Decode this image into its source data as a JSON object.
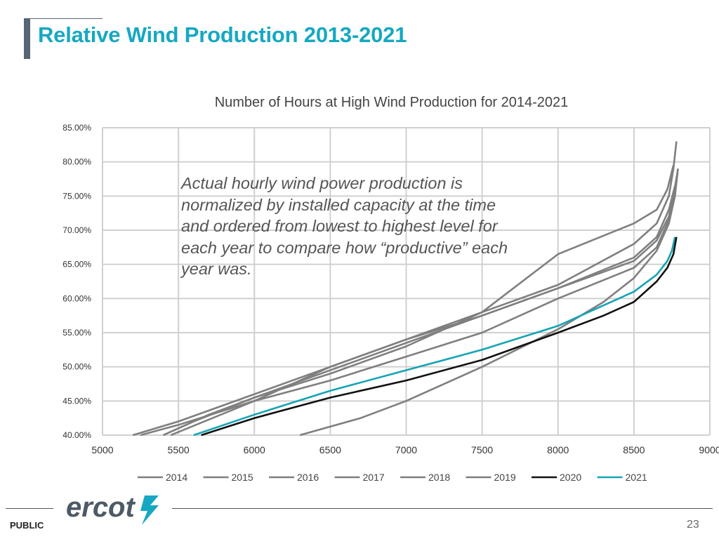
{
  "slide": {
    "title": "Relative Wind Production 2013-2021",
    "note": "Actual hourly wind power production is normalized by installed capacity at the time and ordered from lowest to highest level for each year to compare how “productive” each year was.",
    "logo_text": "ercot",
    "footer_label": "PUBLIC",
    "page_number": "23"
  },
  "chart_data": {
    "type": "line",
    "title": "Number of Hours at High Wind Production for 2014-2021",
    "xlim": [
      5000,
      9000
    ],
    "ylim": [
      0.4,
      0.85
    ],
    "x_ticks": [
      "5000",
      "5500",
      "6000",
      "6500",
      "7000",
      "7500",
      "8000",
      "8500",
      "9000"
    ],
    "y_ticks": [
      "40.00%",
      "45.00%",
      "50.00%",
      "55.00%",
      "60.00%",
      "65.00%",
      "70.00%",
      "75.00%",
      "80.00%",
      "85.00%"
    ],
    "grid": true,
    "legend_position": "bottom",
    "series": [
      {
        "name": "2014",
        "color": "#7f7f7f",
        "points": [
          [
            5250,
            0.4
          ],
          [
            5500,
            0.415
          ],
          [
            6000,
            0.45
          ],
          [
            6500,
            0.48
          ],
          [
            7000,
            0.515
          ],
          [
            7500,
            0.55
          ],
          [
            8000,
            0.6
          ],
          [
            8500,
            0.645
          ],
          [
            8650,
            0.675
          ],
          [
            8720,
            0.71
          ],
          [
            8760,
            0.75
          ],
          [
            8790,
            0.79
          ]
        ]
      },
      {
        "name": "2015",
        "color": "#7f7f7f",
        "points": [
          [
            5400,
            0.4
          ],
          [
            5600,
            0.42
          ],
          [
            6000,
            0.455
          ],
          [
            6500,
            0.49
          ],
          [
            7000,
            0.53
          ],
          [
            7500,
            0.58
          ],
          [
            8000,
            0.62
          ],
          [
            8500,
            0.68
          ],
          [
            8650,
            0.71
          ],
          [
            8730,
            0.75
          ],
          [
            8760,
            0.79
          ],
          [
            8780,
            0.83
          ]
        ]
      },
      {
        "name": "2016",
        "color": "#7f7f7f",
        "points": [
          [
            5400,
            0.4
          ],
          [
            5700,
            0.43
          ],
          [
            6000,
            0.455
          ],
          [
            6500,
            0.495
          ],
          [
            7000,
            0.535
          ],
          [
            7500,
            0.575
          ],
          [
            8000,
            0.615
          ],
          [
            8500,
            0.66
          ],
          [
            8650,
            0.69
          ],
          [
            8730,
            0.73
          ],
          [
            8770,
            0.765
          ]
        ]
      },
      {
        "name": "2017",
        "color": "#7f7f7f",
        "points": [
          [
            5450,
            0.4
          ],
          [
            6000,
            0.45
          ],
          [
            6500,
            0.5
          ],
          [
            7000,
            0.54
          ],
          [
            7500,
            0.575
          ],
          [
            8000,
            0.615
          ],
          [
            8500,
            0.655
          ],
          [
            8650,
            0.685
          ],
          [
            8730,
            0.72
          ],
          [
            8770,
            0.76
          ]
        ]
      },
      {
        "name": "2018",
        "color": "#7f7f7f",
        "points": [
          [
            6300,
            0.4
          ],
          [
            6700,
            0.425
          ],
          [
            7000,
            0.45
          ],
          [
            7500,
            0.5
          ],
          [
            8000,
            0.555
          ],
          [
            8300,
            0.595
          ],
          [
            8500,
            0.63
          ],
          [
            8650,
            0.67
          ],
          [
            8730,
            0.71
          ],
          [
            8770,
            0.75
          ],
          [
            8790,
            0.79
          ]
        ]
      },
      {
        "name": "2019",
        "color": "#7f7f7f",
        "points": [
          [
            5200,
            0.4
          ],
          [
            5500,
            0.42
          ],
          [
            6000,
            0.46
          ],
          [
            6500,
            0.5
          ],
          [
            7000,
            0.54
          ],
          [
            7500,
            0.58
          ],
          [
            8000,
            0.665
          ],
          [
            8500,
            0.71
          ],
          [
            8650,
            0.73
          ],
          [
            8720,
            0.76
          ],
          [
            8760,
            0.795
          ]
        ]
      },
      {
        "name": "2020",
        "color": "#111111",
        "points": [
          [
            5650,
            0.4
          ],
          [
            6000,
            0.425
          ],
          [
            6500,
            0.455
          ],
          [
            7000,
            0.48
          ],
          [
            7500,
            0.51
          ],
          [
            8000,
            0.55
          ],
          [
            8300,
            0.575
          ],
          [
            8500,
            0.595
          ],
          [
            8650,
            0.625
          ],
          [
            8720,
            0.645
          ],
          [
            8760,
            0.665
          ],
          [
            8780,
            0.69
          ]
        ]
      },
      {
        "name": "2021",
        "color": "#16a4b6",
        "points": [
          [
            5600,
            0.4
          ],
          [
            6000,
            0.43
          ],
          [
            6500,
            0.465
          ],
          [
            7000,
            0.495
          ],
          [
            7500,
            0.525
          ],
          [
            8000,
            0.56
          ],
          [
            8300,
            0.59
          ],
          [
            8500,
            0.61
          ],
          [
            8650,
            0.635
          ],
          [
            8720,
            0.655
          ],
          [
            8750,
            0.67
          ],
          [
            8770,
            0.69
          ]
        ]
      }
    ]
  }
}
